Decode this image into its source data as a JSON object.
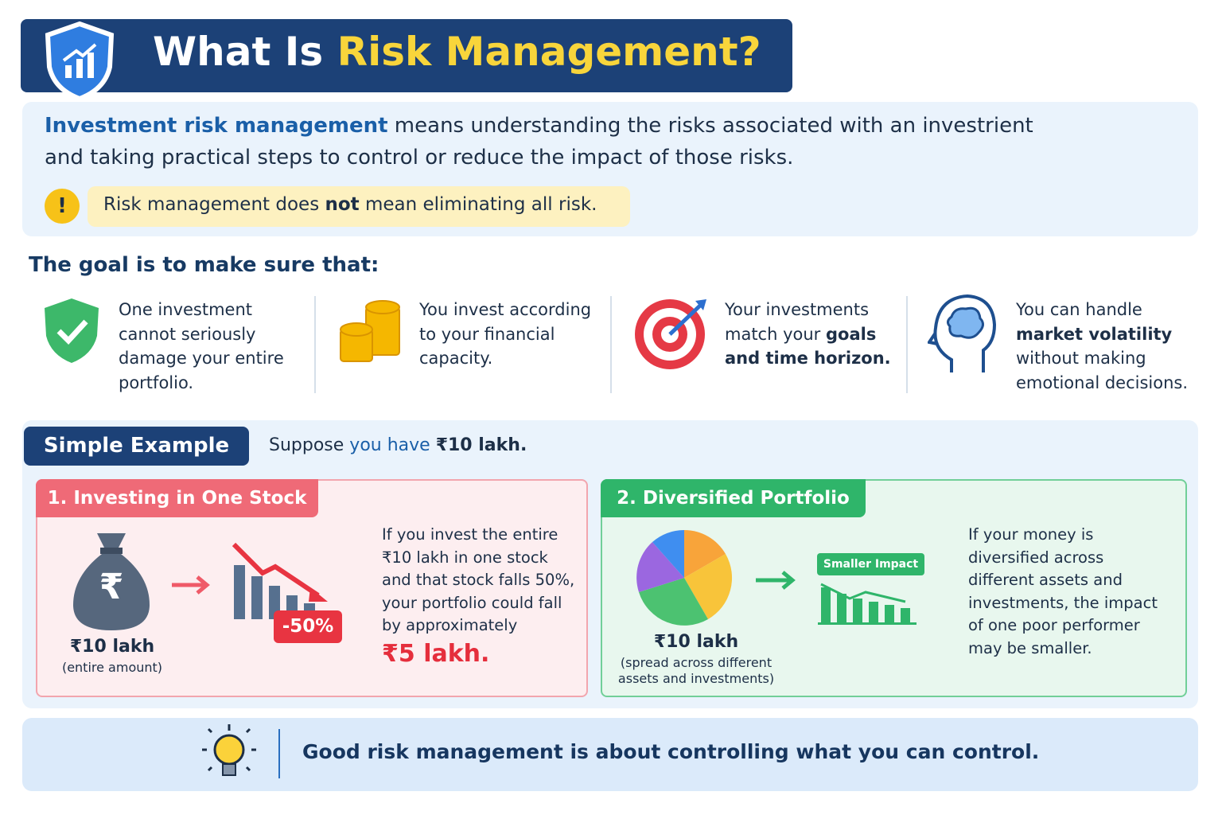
{
  "header": {
    "title_parts": [
      {
        "text": "What Is "
      },
      {
        "text": "Risk Management?",
        "color": "#f8d53b"
      }
    ]
  },
  "intro": {
    "line1": [
      {
        "text": "Investment risk management",
        "bold": true,
        "color": "#1a5fa8"
      },
      {
        "text": " means understanding the risks associated with an investrient"
      }
    ],
    "line2": "and taking practical steps to control or reduce the impact of those risks.",
    "note_icon": "!",
    "note": [
      {
        "text": "Risk management does "
      },
      {
        "text": "not",
        "bold": true
      },
      {
        "text": " mean eliminating all risk."
      }
    ]
  },
  "goal": {
    "heading": "The goal is to make sure that:",
    "items": [
      {
        "parts": [
          {
            "text": "One investment cannot seriously damage your entire portfolio."
          }
        ]
      },
      {
        "parts": [
          {
            "text": "You invest according to your financial capacity."
          }
        ]
      },
      {
        "parts": [
          {
            "text": "Your investments match your "
          },
          {
            "text": "goals",
            "bold": true
          },
          {
            "text": " and time horizon.",
            "bold": true
          }
        ]
      },
      {
        "parts": [
          {
            "text": "You can handle "
          },
          {
            "text": "market volatility",
            "bold": true
          },
          {
            "text": " without making emotional decisions."
          }
        ]
      }
    ]
  },
  "example": {
    "badge": "Simple Example",
    "intro": [
      {
        "text": "Suppose "
      },
      {
        "text": "you have ",
        "color": "#1a5fa8"
      },
      {
        "text": "₹10 lakh.",
        "bold": true
      }
    ],
    "cards": [
      {
        "title": "1. Investing in One Stock",
        "bag_symbol": "₹",
        "drop": "-50%",
        "amount": "₹10 lakh",
        "amount_note": "(entire amount)",
        "text": "If you invest the entire ₹10 lakh in one stock and that stock falls 50%, your portfolio could fall by approximately",
        "highlight": "₹5 lakh."
      },
      {
        "title": "2. Diversified Portfolio",
        "impact_label": "Smaller Impact",
        "amount": "₹10 lakh",
        "amount_note": "(spread across different assets and investments)",
        "text": "If your money is diversified across different assets and investments, the impact of one poor performer may be smaller."
      }
    ]
  },
  "footer": {
    "text": "Good risk management is about controlling what you can control."
  }
}
